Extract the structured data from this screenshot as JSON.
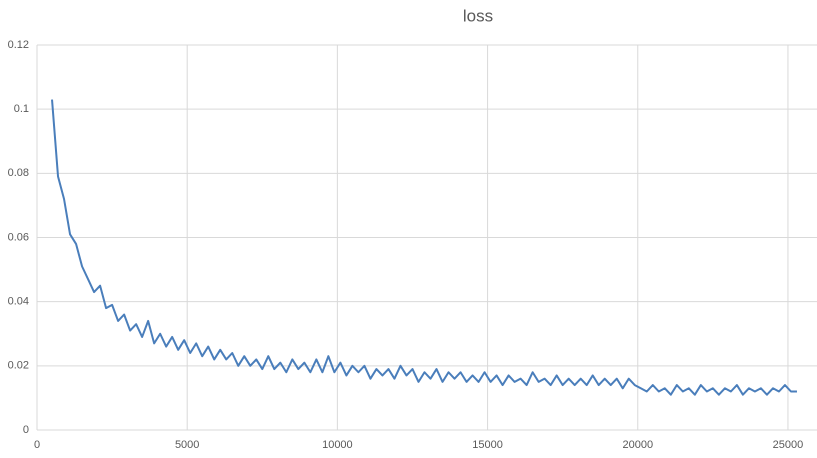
{
  "chart_data": {
    "type": "line",
    "title": "loss",
    "x": [
      500,
      700,
      900,
      1100,
      1300,
      1500,
      1700,
      1900,
      2100,
      2300,
      2500,
      2700,
      2900,
      3100,
      3300,
      3500,
      3700,
      3900,
      4100,
      4300,
      4500,
      4700,
      4900,
      5100,
      5300,
      5500,
      5700,
      5900,
      6100,
      6300,
      6500,
      6700,
      6900,
      7100,
      7300,
      7500,
      7700,
      7900,
      8100,
      8300,
      8500,
      8700,
      8900,
      9100,
      9300,
      9500,
      9700,
      9900,
      10100,
      10300,
      10500,
      10700,
      10900,
      11100,
      11300,
      11500,
      11700,
      11900,
      12100,
      12300,
      12500,
      12700,
      12900,
      13100,
      13300,
      13500,
      13700,
      13900,
      14100,
      14300,
      14500,
      14700,
      14900,
      15100,
      15300,
      15500,
      15700,
      15900,
      16100,
      16300,
      16500,
      16700,
      16900,
      17100,
      17300,
      17500,
      17700,
      17900,
      18100,
      18300,
      18500,
      18700,
      18900,
      19100,
      19300,
      19500,
      19700,
      19900,
      20100,
      20300,
      20500,
      20700,
      20900,
      21100,
      21300,
      21500,
      21700,
      21900,
      22100,
      22300,
      22500,
      22700,
      22900,
      23100,
      23300,
      23500,
      23700,
      23900,
      24100,
      24300,
      24500,
      24700,
      24900,
      25100,
      25300
    ],
    "values": [
      0.103,
      0.079,
      0.072,
      0.061,
      0.058,
      0.051,
      0.047,
      0.043,
      0.045,
      0.038,
      0.039,
      0.034,
      0.036,
      0.031,
      0.033,
      0.029,
      0.034,
      0.027,
      0.03,
      0.026,
      0.029,
      0.025,
      0.028,
      0.024,
      0.027,
      0.023,
      0.026,
      0.022,
      0.025,
      0.022,
      0.024,
      0.02,
      0.023,
      0.02,
      0.022,
      0.019,
      0.023,
      0.019,
      0.021,
      0.018,
      0.022,
      0.019,
      0.021,
      0.018,
      0.022,
      0.018,
      0.023,
      0.018,
      0.021,
      0.017,
      0.02,
      0.018,
      0.02,
      0.016,
      0.019,
      0.017,
      0.019,
      0.016,
      0.02,
      0.017,
      0.019,
      0.015,
      0.018,
      0.016,
      0.019,
      0.015,
      0.018,
      0.016,
      0.018,
      0.015,
      0.017,
      0.015,
      0.018,
      0.015,
      0.017,
      0.014,
      0.017,
      0.015,
      0.016,
      0.014,
      0.018,
      0.015,
      0.016,
      0.014,
      0.017,
      0.014,
      0.016,
      0.014,
      0.016,
      0.014,
      0.017,
      0.014,
      0.016,
      0.014,
      0.016,
      0.013,
      0.016,
      0.014,
      0.013,
      0.012,
      0.014,
      0.012,
      0.013,
      0.011,
      0.014,
      0.012,
      0.013,
      0.011,
      0.014,
      0.012,
      0.013,
      0.011,
      0.013,
      0.012,
      0.014,
      0.011,
      0.013,
      0.012,
      0.013,
      0.011,
      0.013,
      0.012,
      0.014,
      0.012,
      0.012
    ],
    "color": "#4a7ebb",
    "xlim": [
      0,
      26000
    ],
    "xticks": [
      0,
      5000,
      10000,
      15000,
      20000,
      25000
    ],
    "ylim": [
      0,
      0.12
    ],
    "yticks": [
      0,
      0.02,
      0.04,
      0.06,
      0.08,
      0.1,
      0.12
    ],
    "grid": true
  }
}
